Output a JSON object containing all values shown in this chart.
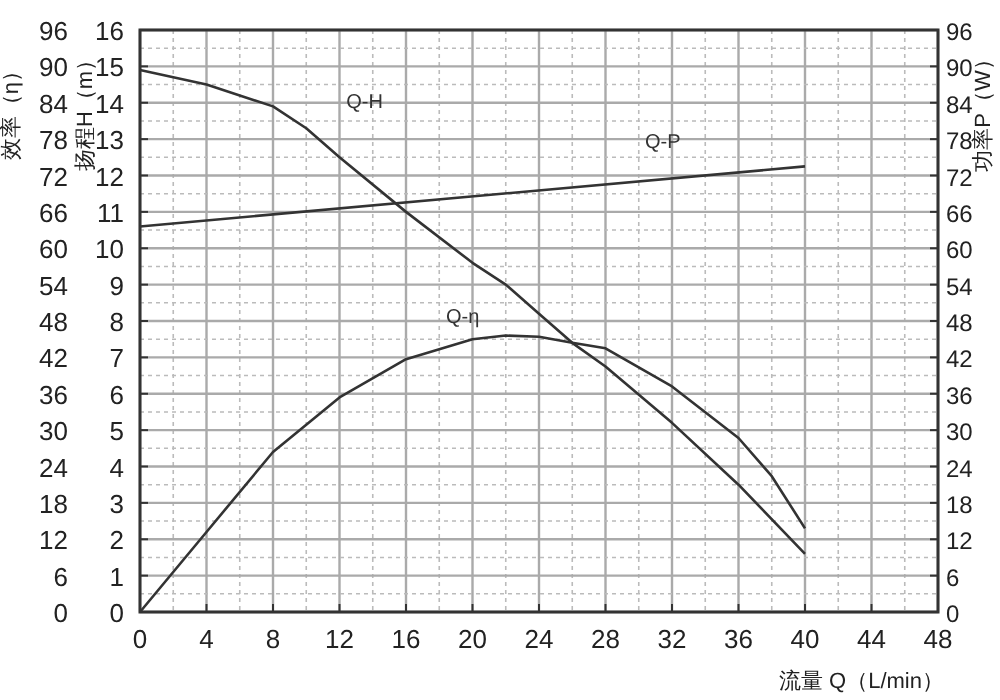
{
  "chart_data": {
    "type": "line",
    "xlabel": "流量 Q（L/min）",
    "ylabel": "扬程H（m）",
    "y2label": "功率P（W）",
    "y3label": "效率（η）",
    "xlim": [
      0,
      48
    ],
    "xticks": [
      0,
      4,
      8,
      12,
      16,
      20,
      24,
      28,
      32,
      36,
      40,
      44,
      48
    ],
    "ylim": [
      0,
      16
    ],
    "yticks": [
      0,
      1,
      2,
      3,
      4,
      5,
      6,
      7,
      8,
      9,
      10,
      11,
      12,
      13,
      14,
      15,
      16
    ],
    "y2lim": [
      0,
      96
    ],
    "y2ticks": [
      0,
      6,
      12,
      18,
      24,
      30,
      36,
      42,
      48,
      54,
      60,
      66,
      72,
      78,
      84,
      90,
      96
    ],
    "y3lim": [
      0,
      96
    ],
    "y3ticks": [
      0,
      6,
      12,
      18,
      24,
      30,
      36,
      42,
      48,
      54,
      60,
      66,
      72,
      78,
      84,
      90,
      96
    ],
    "grid": true,
    "marker": "none",
    "line_style": "solid",
    "series": [
      {
        "name": "Q-H",
        "color": "#333333",
        "axis": "y",
        "x": [
          0,
          4,
          8,
          10,
          12,
          16,
          20,
          22,
          24,
          26,
          28,
          32,
          36,
          40
        ],
        "values": [
          14.9,
          14.5,
          13.9,
          13.3,
          12.5,
          11.0,
          9.6,
          9.0,
          8.2,
          7.4,
          6.75,
          5.2,
          3.5,
          1.6
        ]
      },
      {
        "name": "Q-P",
        "color": "#333333",
        "axis": "y2",
        "x": [
          0,
          40
        ],
        "values": [
          63.6,
          73.5
        ]
      },
      {
        "name": "Q-η",
        "color": "#333333",
        "axis": "y3",
        "x": [
          0,
          4,
          8,
          12,
          16,
          20,
          22,
          24,
          26,
          28,
          32,
          36,
          38,
          40
        ],
        "values": [
          0,
          13.2,
          26.4,
          35.4,
          41.7,
          45,
          45.6,
          45.4,
          44.4,
          43.5,
          37.2,
          28.7,
          22.4,
          13.8
        ]
      }
    ]
  }
}
